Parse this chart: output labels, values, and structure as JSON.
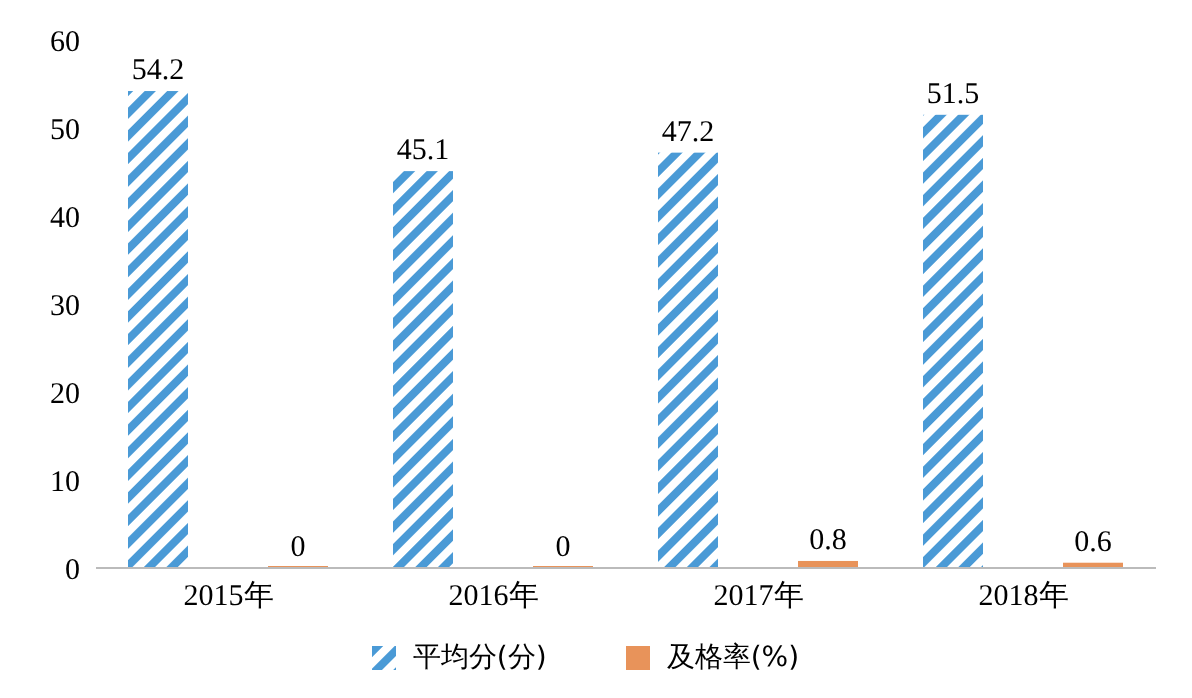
{
  "chart_data": {
    "type": "bar",
    "categories": [
      "2015年",
      "2016年",
      "2017年",
      "2018年"
    ],
    "series": [
      {
        "name": "平均分(分)",
        "color": "#4a9ad6",
        "values": [
          54.2,
          45.1,
          47.2,
          51.5
        ]
      },
      {
        "name": "及格率(%)",
        "color": "#e8935a",
        "values": [
          0,
          0,
          0.8,
          0.6
        ]
      }
    ],
    "ylim": [
      0,
      60
    ],
    "yticks": [
      0,
      10,
      20,
      30,
      40,
      50,
      60
    ],
    "data_labels": true,
    "legend": "bottom",
    "grid": false
  }
}
